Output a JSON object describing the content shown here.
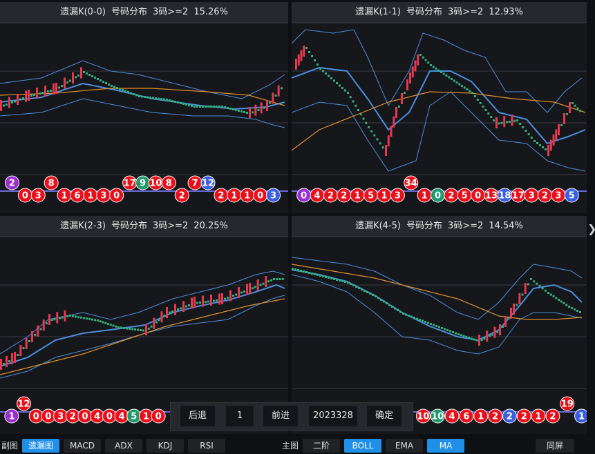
{
  "panels": [
    {
      "title": "遗漏K(0-0)",
      "label": "号码分布",
      "rule": "3码>=2",
      "pct": "15.26%",
      "balls": [
        {
          "v": "2",
          "c": "purple",
          "row": "up"
        },
        {
          "v": "0",
          "c": "red",
          "row": "down"
        },
        {
          "v": "3",
          "c": "red",
          "row": "down"
        },
        {
          "v": "8",
          "c": "red",
          "row": "up"
        },
        {
          "v": "1",
          "c": "red",
          "row": "down"
        },
        {
          "v": "6",
          "c": "red",
          "row": "down"
        },
        {
          "v": "1",
          "c": "red",
          "row": "down"
        },
        {
          "v": "3",
          "c": "red",
          "row": "down"
        },
        {
          "v": "0",
          "c": "red",
          "row": "down"
        },
        {
          "v": "17",
          "c": "red",
          "row": "up"
        },
        {
          "v": "9",
          "c": "green",
          "row": "up"
        },
        {
          "v": "10",
          "c": "red",
          "row": "up"
        },
        {
          "v": "8",
          "c": "red",
          "row": "up"
        },
        {
          "v": "2",
          "c": "red",
          "row": "down"
        },
        {
          "v": "7",
          "c": "red",
          "row": "up"
        },
        {
          "v": "12",
          "c": "blue",
          "row": "up"
        },
        {
          "v": "2",
          "c": "red",
          "row": "down"
        },
        {
          "v": "1",
          "c": "red",
          "row": "down"
        },
        {
          "v": "1",
          "c": "red",
          "row": "down"
        },
        {
          "v": "0",
          "c": "red",
          "row": "down"
        },
        {
          "v": "3",
          "c": "blue",
          "row": "down"
        }
      ]
    },
    {
      "title": "遗漏K(1-1)",
      "label": "号码分布",
      "rule": "3码>=2",
      "pct": "12.93%",
      "balls": [
        {
          "v": "0",
          "c": "purple",
          "row": "down"
        },
        {
          "v": "4",
          "c": "red",
          "row": "down"
        },
        {
          "v": "2",
          "c": "red",
          "row": "down"
        },
        {
          "v": "2",
          "c": "red",
          "row": "down"
        },
        {
          "v": "1",
          "c": "red",
          "row": "down"
        },
        {
          "v": "5",
          "c": "red",
          "row": "down"
        },
        {
          "v": "1",
          "c": "red",
          "row": "down"
        },
        {
          "v": "3",
          "c": "red",
          "row": "down"
        },
        {
          "v": "34",
          "c": "red",
          "row": "up"
        },
        {
          "v": "1",
          "c": "red",
          "row": "down"
        },
        {
          "v": "0",
          "c": "green",
          "row": "down"
        },
        {
          "v": "2",
          "c": "red",
          "row": "down"
        },
        {
          "v": "5",
          "c": "red",
          "row": "down"
        },
        {
          "v": "0",
          "c": "red",
          "row": "down"
        },
        {
          "v": "13",
          "c": "red",
          "row": "down"
        },
        {
          "v": "18",
          "c": "blue",
          "row": "down"
        },
        {
          "v": "17",
          "c": "red",
          "row": "down"
        },
        {
          "v": "3",
          "c": "red",
          "row": "down"
        },
        {
          "v": "2",
          "c": "red",
          "row": "down"
        },
        {
          "v": "3",
          "c": "red",
          "row": "down"
        },
        {
          "v": "5",
          "c": "blue",
          "row": "down"
        }
      ]
    },
    {
      "title": "遗漏K(2-3)",
      "label": "号码分布",
      "rule": "3码>=2",
      "pct": "20.25%",
      "balls": [
        {
          "v": "1",
          "c": "purple",
          "row": "down"
        },
        {
          "v": "12",
          "c": "red",
          "row": "up"
        },
        {
          "v": "0",
          "c": "red",
          "row": "down"
        },
        {
          "v": "0",
          "c": "red",
          "row": "down"
        },
        {
          "v": "3",
          "c": "red",
          "row": "down"
        },
        {
          "v": "2",
          "c": "red",
          "row": "down"
        },
        {
          "v": "0",
          "c": "red",
          "row": "down"
        },
        {
          "v": "4",
          "c": "red",
          "row": "down"
        },
        {
          "v": "0",
          "c": "red",
          "row": "down"
        },
        {
          "v": "4",
          "c": "red",
          "row": "down"
        },
        {
          "v": "5",
          "c": "green",
          "row": "down"
        },
        {
          "v": "1",
          "c": "red",
          "row": "down"
        },
        {
          "v": "0",
          "c": "red",
          "row": "down"
        }
      ]
    },
    {
      "title": "遗漏K(4-5)",
      "label": "号码分布",
      "rule": "3码>=2",
      "pct": "14.54%",
      "balls": [
        {
          "v": "10",
          "c": "red",
          "row": "down"
        },
        {
          "v": "10",
          "c": "green",
          "row": "down"
        },
        {
          "v": "4",
          "c": "red",
          "row": "down"
        },
        {
          "v": "6",
          "c": "red",
          "row": "down"
        },
        {
          "v": "1",
          "c": "red",
          "row": "down"
        },
        {
          "v": "2",
          "c": "red",
          "row": "down"
        },
        {
          "v": "2",
          "c": "blue",
          "row": "down"
        },
        {
          "v": "2",
          "c": "red",
          "row": "down"
        },
        {
          "v": "1",
          "c": "red",
          "row": "down"
        },
        {
          "v": "2",
          "c": "red",
          "row": "down"
        },
        {
          "v": "19",
          "c": "red",
          "row": "up"
        },
        {
          "v": "1",
          "c": "blue",
          "row": "down"
        }
      ]
    }
  ],
  "nav": {
    "back": "后退",
    "page": "1",
    "forward": "前进",
    "date": "2023328",
    "confirm": "确定"
  },
  "bottom": {
    "sub_label": "副图",
    "sub_buttons": [
      {
        "label": "遗漏图",
        "active": true
      },
      {
        "label": "MACD",
        "active": false
      },
      {
        "label": "ADX",
        "active": false
      },
      {
        "label": "KDJ",
        "active": false
      },
      {
        "label": "RSI",
        "active": false
      }
    ],
    "main_label": "主图",
    "main_buttons": [
      {
        "label": "二阶",
        "active": false
      },
      {
        "label": "BOLL",
        "active": true
      },
      {
        "label": "EMA",
        "active": false
      },
      {
        "label": "MA",
        "active": true
      }
    ],
    "sync": "同屏"
  },
  "colors": {
    "up": "#e8384f",
    "down": "#2fb07c",
    "boll": "#4a8fe0",
    "ma": "#e0912a",
    "ball_red": "#e8101a",
    "ball_blue": "#3a5fe0",
    "ball_green": "#1f9a6a",
    "ball_purple": "#9a2fd0",
    "accent": "#1f8fe8"
  },
  "icons": {
    "right_arrow": "chevron-right-icon"
  }
}
